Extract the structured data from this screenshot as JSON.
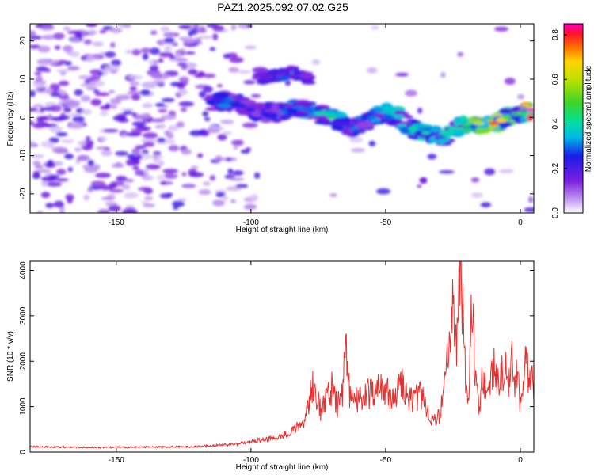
{
  "title": "PAZ1.2025.092.07.02.G25",
  "chart_data": [
    {
      "type": "heatmap",
      "xlabel": "Height of straight line (km)",
      "ylabel": "Frequency (Hz)",
      "xlim": [
        -182,
        5
      ],
      "ylim": [
        -25,
        24.5
      ],
      "x_ticks": [
        -150,
        -100,
        -50,
        0
      ],
      "y_ticks": [
        -20,
        -10,
        0,
        10,
        20
      ],
      "x_tick_labels": [
        "-150",
        "-100",
        "-50",
        "0"
      ],
      "y_tick_labels": [
        "-20",
        "-10",
        "0",
        "10",
        "20"
      ],
      "colorbar": {
        "label": "Normalized spectral amplitude",
        "range": [
          0,
          0.85
        ],
        "ticks": [
          0.0,
          0.2,
          0.4,
          0.6,
          0.8
        ],
        "tick_labels": [
          "0.0",
          "0.2",
          "0.4",
          "0.6",
          "0.8"
        ]
      },
      "ridge": {
        "x": [
          -115,
          -108,
          -100,
          -95,
          -88,
          -82,
          -75,
          -70,
          -62,
          -55,
          -50,
          -45,
          -40,
          -35,
          -30,
          -28,
          -25,
          -20,
          -15,
          -10,
          -5,
          0,
          4
        ],
        "y": [
          4,
          4.5,
          2,
          1,
          1.5,
          2.5,
          1,
          0,
          -3,
          0,
          1.5,
          0,
          -3,
          -4,
          -5,
          -6,
          -3,
          -2,
          -1.5,
          -1.5,
          0,
          1,
          2
        ],
        "amplitude": [
          0.25,
          0.3,
          0.25,
          0.25,
          0.3,
          0.3,
          0.4,
          0.45,
          0.3,
          0.3,
          0.35,
          0.35,
          0.4,
          0.4,
          0.3,
          0.35,
          0.4,
          0.45,
          0.6,
          0.8,
          0.5,
          0.5,
          0.85
        ]
      },
      "upper_branch": {
        "x": [
          -98,
          -90,
          -85,
          -78
        ],
        "y": [
          10,
          11,
          12,
          10
        ],
        "amplitude": [
          0.15,
          0.2,
          0.25,
          0.15
        ]
      },
      "isolated_blob": {
        "x": -36,
        "y": -16.5,
        "amplitude": 0.15
      }
    },
    {
      "type": "line",
      "xlabel": "Height of straight line (km)",
      "ylabel": "SNR (10 * v/v)",
      "xlim": [
        -182,
        5
      ],
      "ylim": [
        0,
        4200
      ],
      "x_ticks": [
        -150,
        -100,
        -50,
        0
      ],
      "y_ticks": [
        0,
        1000,
        2000,
        3000,
        4000
      ],
      "x_tick_labels": [
        "-150",
        "-100",
        "-50",
        "0"
      ],
      "y_tick_labels": [
        "0",
        "1000",
        "2000",
        "3000",
        "4000"
      ],
      "color": "#e8312f",
      "series": [
        {
          "x": [
            -182,
            -160,
            -140,
            -120,
            -105,
            -100,
            -92,
            -88,
            -84,
            -80,
            -77,
            -76,
            -74,
            -72,
            -70,
            -68,
            -66,
            -65,
            -63,
            -60,
            -56,
            -52,
            -48,
            -44,
            -40,
            -37,
            -33,
            -30,
            -28,
            -26,
            -25,
            -24,
            -23,
            -22,
            -21,
            -20,
            -19,
            -18,
            -17,
            -16,
            -15,
            -14,
            -12,
            -10,
            -8,
            -6,
            -4,
            -3,
            -2,
            -1,
            0,
            1,
            2,
            3,
            4,
            5
          ],
          "y": [
            120,
            100,
            110,
            120,
            180,
            230,
            300,
            380,
            500,
            700,
            1500,
            1200,
            900,
            1200,
            1400,
            1000,
            1300,
            2300,
            1100,
            1200,
            1300,
            1400,
            1250,
            1500,
            1100,
            1300,
            700,
            800,
            1500,
            2500,
            3500,
            2200,
            3200,
            4150,
            2600,
            1200,
            1400,
            3500,
            2000,
            1200,
            1000,
            1800,
            1300,
            1900,
            1500,
            1900,
            1600,
            2300,
            1400,
            1800,
            1000,
            1500,
            2200,
            1600,
            1800,
            1300
          ]
        }
      ]
    }
  ]
}
